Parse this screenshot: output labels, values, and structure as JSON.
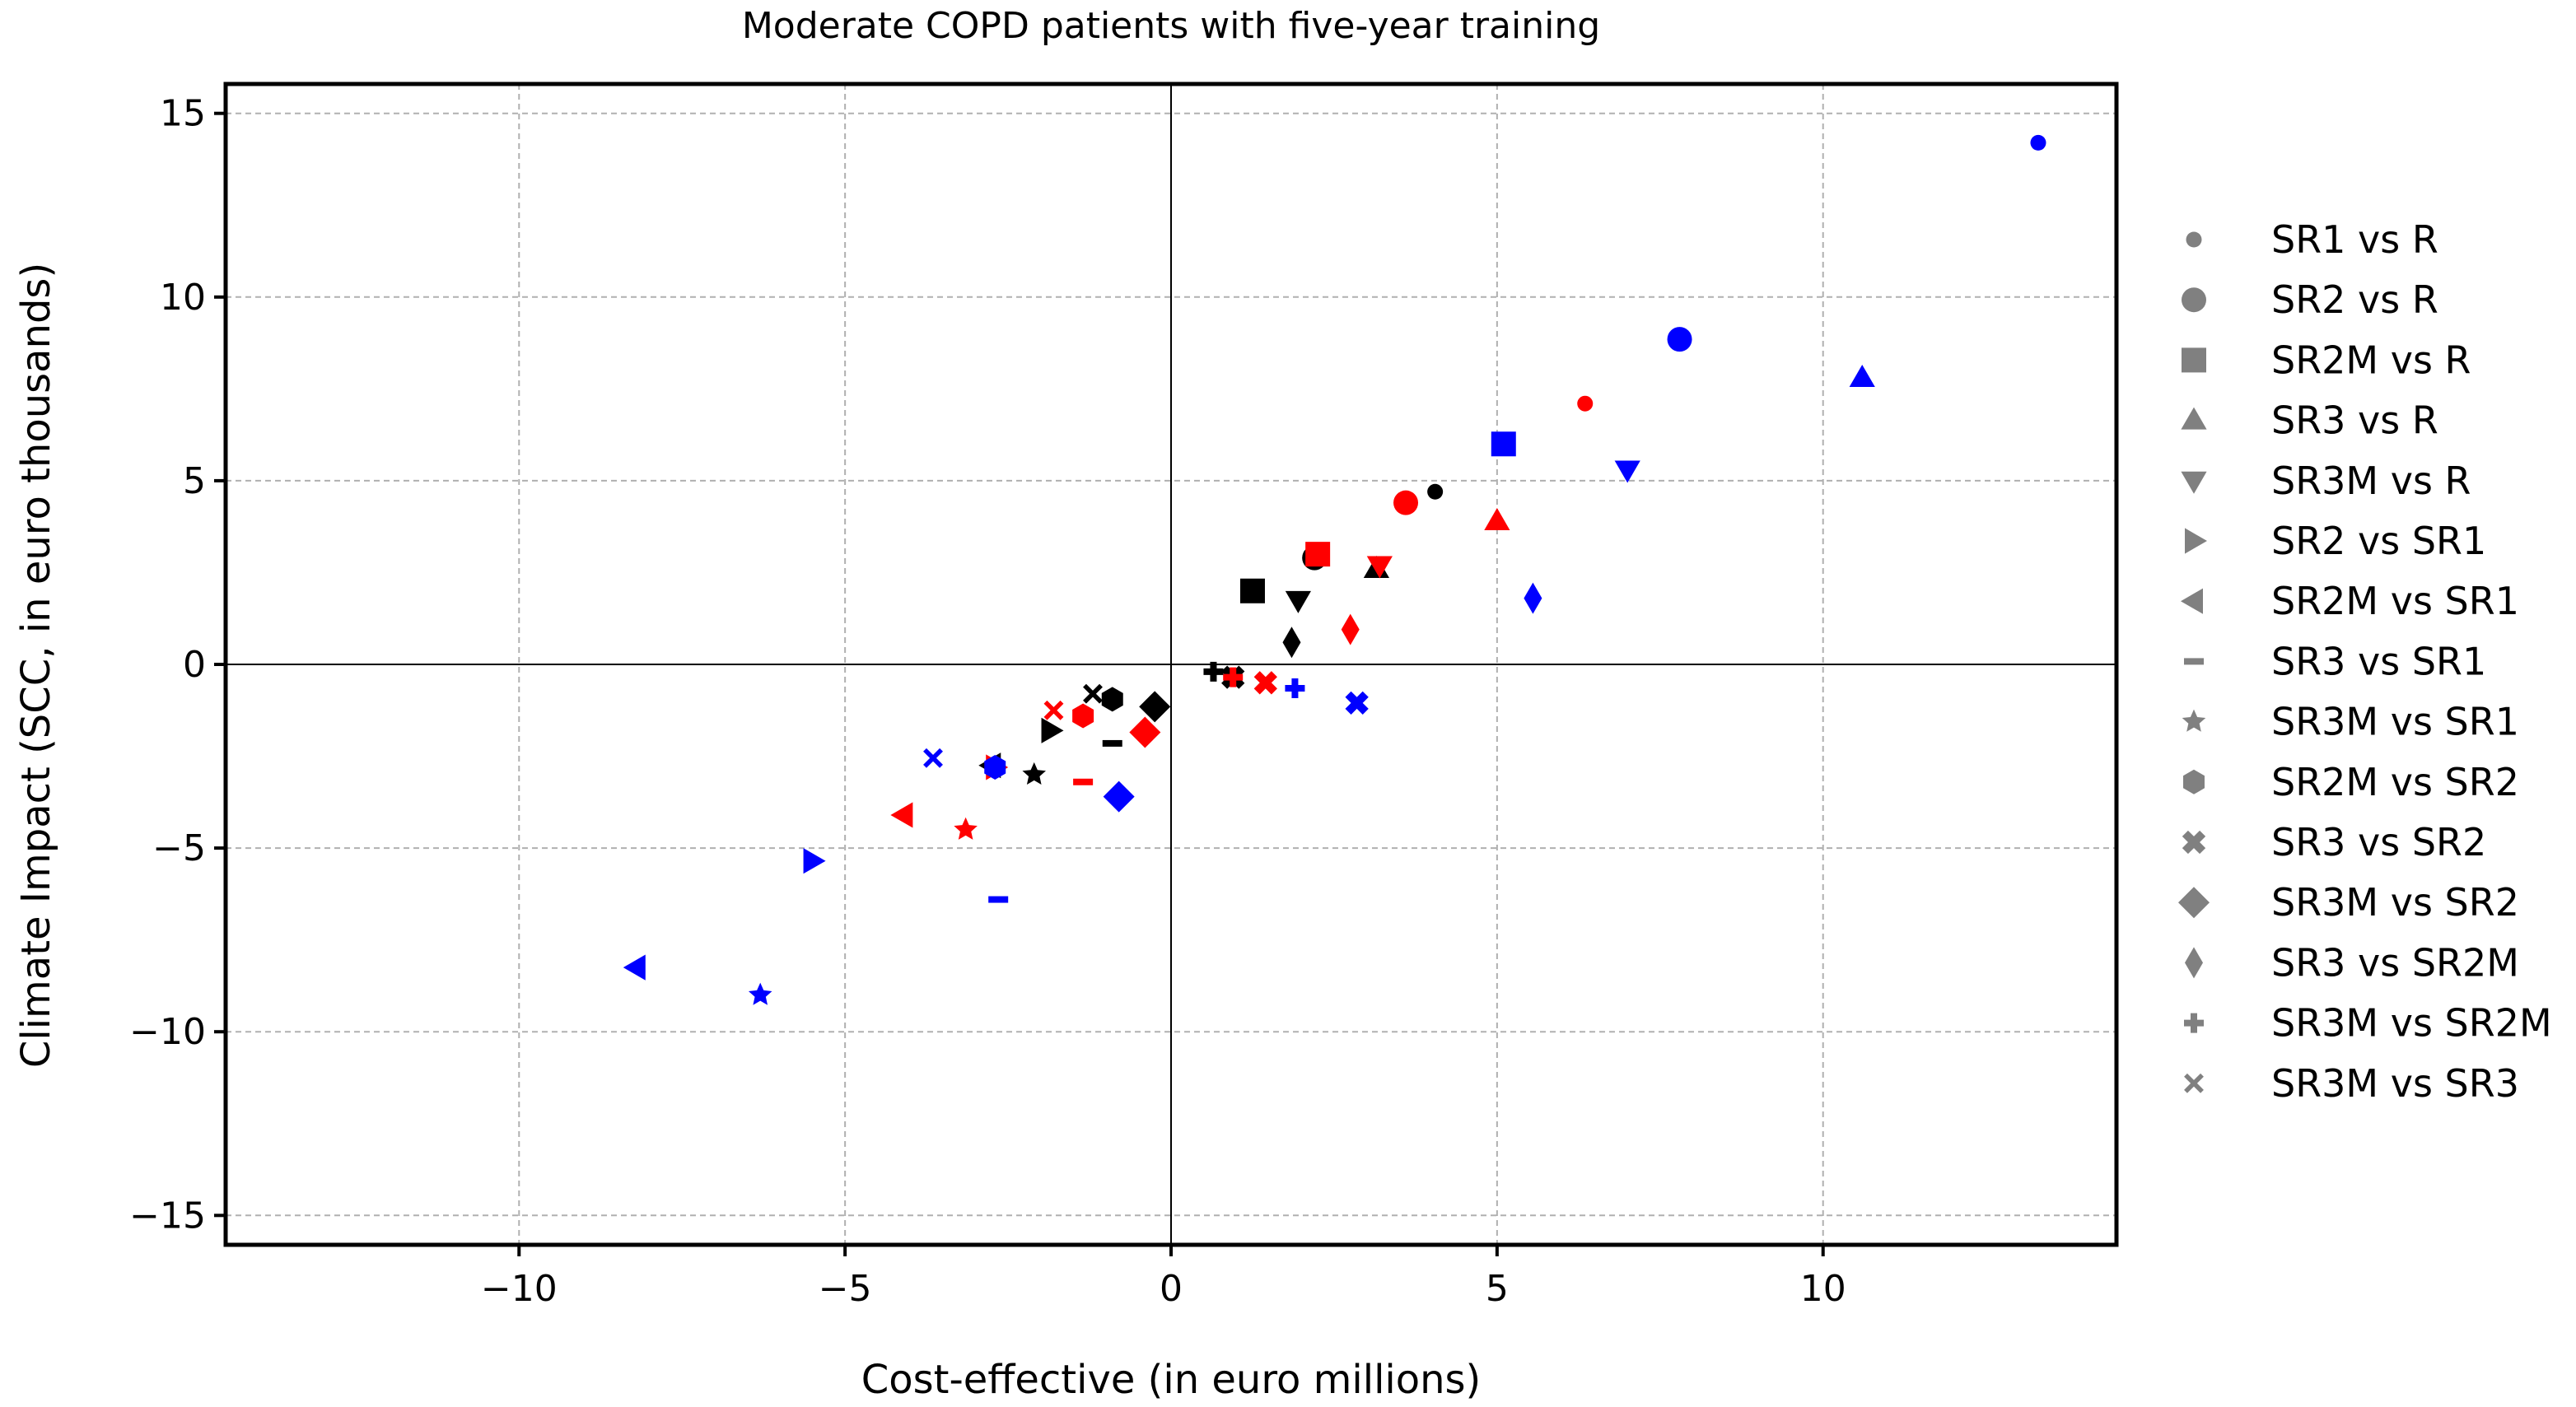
{
  "chart_data": {
    "type": "scatter",
    "title": "Moderate COPD patients with five-year training",
    "xlabel": "Cost-effective (in euro millions)",
    "ylabel": "Climate Impact (SCC, in euro thousands)",
    "xlim": [
      -14.5,
      14.5
    ],
    "ylim": [
      -15.8,
      15.8
    ],
    "xticks": [
      -10,
      -5,
      0,
      5,
      10
    ],
    "yticks": [
      -15,
      -10,
      -5,
      0,
      5,
      10,
      15
    ],
    "xtick_labels": [
      "−10",
      "−5",
      "0",
      "5",
      "10"
    ],
    "ytick_labels": [
      "−15",
      "−10",
      "−5",
      "0",
      "5",
      "10",
      "15"
    ],
    "grid": true,
    "legend_position": "right",
    "legend_color": "#808080",
    "colors": {
      "black": "#000000",
      "red": "#ff0000",
      "blue": "#0000ff"
    },
    "series": [
      {
        "name": "SR1 vs R",
        "marker": "small-circle",
        "points": [
          {
            "x": 13.3,
            "y": 14.2,
            "color": "blue"
          },
          {
            "x": 6.35,
            "y": 7.1,
            "color": "red"
          },
          {
            "x": 4.05,
            "y": 4.7,
            "color": "black"
          }
        ]
      },
      {
        "name": "SR2 vs R",
        "marker": "circle",
        "points": [
          {
            "x": 7.8,
            "y": 8.85,
            "color": "blue"
          },
          {
            "x": 3.6,
            "y": 4.4,
            "color": "red"
          },
          {
            "x": 2.2,
            "y": 2.9,
            "color": "black"
          }
        ]
      },
      {
        "name": "SR2M vs R",
        "marker": "square",
        "points": [
          {
            "x": 5.1,
            "y": 6.0,
            "color": "blue"
          },
          {
            "x": 2.25,
            "y": 3.0,
            "color": "red"
          },
          {
            "x": 1.25,
            "y": 2.0,
            "color": "black"
          }
        ]
      },
      {
        "name": "SR3 vs R",
        "marker": "triangle-up",
        "points": [
          {
            "x": 10.6,
            "y": 7.8,
            "color": "blue"
          },
          {
            "x": 5.0,
            "y": 3.9,
            "color": "red"
          },
          {
            "x": 3.15,
            "y": 2.6,
            "color": "black"
          }
        ]
      },
      {
        "name": "SR3M vs R",
        "marker": "triangle-down",
        "points": [
          {
            "x": 7.0,
            "y": 5.3,
            "color": "blue"
          },
          {
            "x": 3.2,
            "y": 2.7,
            "color": "red"
          },
          {
            "x": 1.95,
            "y": 1.75,
            "color": "black"
          }
        ]
      },
      {
        "name": "SR2 vs SR1",
        "marker": "triangle-right",
        "points": [
          {
            "x": -5.5,
            "y": -5.35,
            "color": "blue"
          },
          {
            "x": -2.7,
            "y": -2.8,
            "color": "red"
          },
          {
            "x": -1.85,
            "y": -1.8,
            "color": "black"
          }
        ]
      },
      {
        "name": "SR2M vs SR1",
        "marker": "triangle-left",
        "points": [
          {
            "x": -8.2,
            "y": -8.25,
            "color": "blue"
          },
          {
            "x": -4.1,
            "y": -4.1,
            "color": "red"
          },
          {
            "x": -2.75,
            "y": -2.75,
            "color": "black"
          }
        ]
      },
      {
        "name": "SR3 vs SR1",
        "marker": "hline",
        "points": [
          {
            "x": -2.65,
            "y": -6.4,
            "color": "blue"
          },
          {
            "x": -1.35,
            "y": -3.2,
            "color": "red"
          },
          {
            "x": -0.9,
            "y": -2.15,
            "color": "black"
          }
        ]
      },
      {
        "name": "SR3M vs SR1",
        "marker": "star",
        "points": [
          {
            "x": -6.3,
            "y": -9.0,
            "color": "blue"
          },
          {
            "x": -3.15,
            "y": -4.5,
            "color": "red"
          },
          {
            "x": -2.1,
            "y": -3.0,
            "color": "black"
          }
        ]
      },
      {
        "name": "SR2M vs SR2",
        "marker": "hexagon",
        "points": [
          {
            "x": -2.7,
            "y": -2.8,
            "color": "blue"
          },
          {
            "x": -1.35,
            "y": -1.4,
            "color": "red"
          },
          {
            "x": -0.9,
            "y": -0.95,
            "color": "black"
          }
        ]
      },
      {
        "name": "SR3 vs SR2",
        "marker": "thick-x",
        "points": [
          {
            "x": 2.85,
            "y": -1.05,
            "color": "blue"
          },
          {
            "x": 1.45,
            "y": -0.5,
            "color": "red"
          },
          {
            "x": 0.95,
            "y": -0.35,
            "color": "black"
          }
        ]
      },
      {
        "name": "SR3M vs SR2",
        "marker": "diamond",
        "points": [
          {
            "x": -0.8,
            "y": -3.6,
            "color": "blue"
          },
          {
            "x": -0.4,
            "y": -1.85,
            "color": "red"
          },
          {
            "x": -0.25,
            "y": -1.15,
            "color": "black"
          }
        ]
      },
      {
        "name": "SR3 vs SR2M",
        "marker": "thin-diamond",
        "points": [
          {
            "x": 5.55,
            "y": 1.8,
            "color": "blue"
          },
          {
            "x": 2.75,
            "y": 0.95,
            "color": "red"
          },
          {
            "x": 1.85,
            "y": 0.6,
            "color": "black"
          }
        ]
      },
      {
        "name": "SR3M vs SR2M",
        "marker": "plus",
        "points": [
          {
            "x": 1.9,
            "y": -0.65,
            "color": "blue"
          },
          {
            "x": 0.95,
            "y": -0.35,
            "color": "red"
          },
          {
            "x": 0.65,
            "y": -0.2,
            "color": "black"
          }
        ]
      },
      {
        "name": "SR3M vs SR3",
        "marker": "x",
        "points": [
          {
            "x": -3.65,
            "y": -2.55,
            "color": "blue"
          },
          {
            "x": -1.8,
            "y": -1.25,
            "color": "red"
          },
          {
            "x": -1.2,
            "y": -0.8,
            "color": "black"
          }
        ]
      }
    ]
  }
}
